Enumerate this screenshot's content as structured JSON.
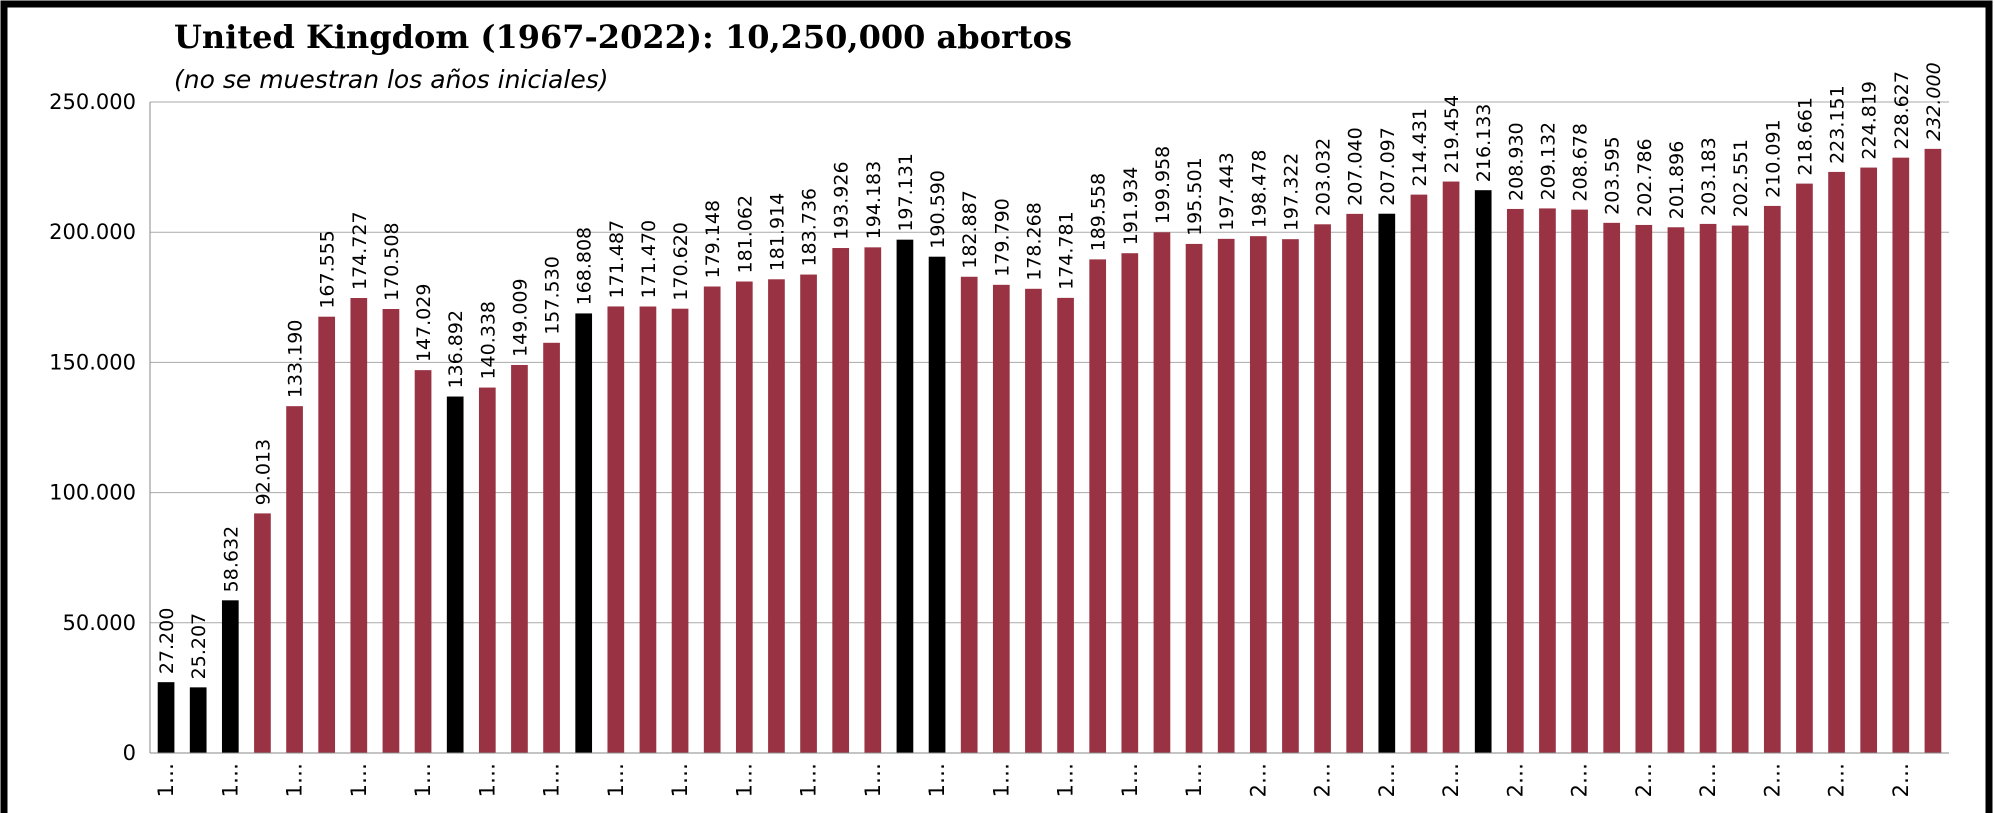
{
  "chart_data": {
    "type": "bar",
    "title": "United Kingdom (1967-2022):  10,250,000 abortos",
    "subtitle": "(no se muestran los años iniciales)",
    "categories": [
      "1…",
      null,
      "1…",
      null,
      "1…",
      null,
      "1…",
      null,
      "1…",
      null,
      "1…",
      null,
      "1…",
      null,
      "1…",
      null,
      "1…",
      null,
      "1…",
      null,
      "1…",
      null,
      "1…",
      null,
      "1…",
      null,
      "1…",
      null,
      "1…",
      null,
      "1…",
      null,
      "1…",
      null,
      "2…",
      null,
      "2…",
      null,
      "2…",
      null,
      "2…",
      null,
      "2…",
      null,
      "2…",
      null,
      "2…",
      null,
      "2…",
      null,
      "2…",
      null,
      "2…",
      null,
      "2…",
      null
    ],
    "values": [
      27200,
      25207,
      58632,
      92013,
      133190,
      167555,
      174727,
      170508,
      147029,
      136892,
      140338,
      149009,
      157530,
      168808,
      171487,
      171470,
      170620,
      179148,
      181062,
      181914,
      183736,
      193926,
      194183,
      197131,
      190590,
      182887,
      179790,
      178268,
      174781,
      189558,
      191934,
      199958,
      195501,
      197443,
      198478,
      197322,
      203032,
      207040,
      207097,
      214431,
      219454,
      216133,
      208930,
      209132,
      208678,
      203595,
      202786,
      201896,
      203183,
      202551,
      210091,
      218661,
      223151,
      224819,
      228627,
      232000
    ],
    "value_labels": [
      "27.200",
      "25.207",
      "58.632",
      "92.013",
      "133.190",
      "167.555",
      "174.727",
      "170.508",
      "147.029",
      "136.892",
      "140.338",
      "149.009",
      "157.530",
      "168.808",
      "171.487",
      "171.470",
      "170.620",
      "179.148",
      "181.062",
      "181.914",
      "183.736",
      "193.926",
      "194.183",
      "197.131",
      "190.590",
      "182.887",
      "179.790",
      "178.268",
      "174.781",
      "189.558",
      "191.934",
      "199.958",
      "195.501",
      "197.443",
      "198.478",
      "197.322",
      "203.032",
      "207.040",
      "207.097",
      "214.431",
      "219.454",
      "216.133",
      "208.930",
      "209.132",
      "208.678",
      "203.595",
      "202.786",
      "201.896",
      "203.183",
      "202.551",
      "210.091",
      "218.661",
      "223.151",
      "224.819",
      "228.627",
      "232.000"
    ],
    "colors": [
      "#000000",
      "#000000",
      "#000000",
      "#993344",
      "#993344",
      "#993344",
      "#993344",
      "#993344",
      "#993344",
      "#000000",
      "#993344",
      "#993344",
      "#993344",
      "#000000",
      "#993344",
      "#993344",
      "#993344",
      "#993344",
      "#993344",
      "#993344",
      "#993344",
      "#993344",
      "#993344",
      "#000000",
      "#000000",
      "#993344",
      "#993344",
      "#993344",
      "#993344",
      "#993344",
      "#993344",
      "#993344",
      "#993344",
      "#993344",
      "#993344",
      "#993344",
      "#993344",
      "#993344",
      "#000000",
      "#993344",
      "#993344",
      "#000000",
      "#993344",
      "#993344",
      "#993344",
      "#993344",
      "#993344",
      "#993344",
      "#993344",
      "#993344",
      "#993344",
      "#993344",
      "#993344",
      "#993344",
      "#993344",
      "#993344"
    ],
    "ylim": [
      0,
      250000
    ],
    "yticks": [
      0,
      {
        "value": 50000,
        "label": "50.000"
      },
      {
        "value": 100000,
        "label": "100.000"
      },
      {
        "value": 150000,
        "label": "150.000"
      },
      {
        "value": 200000,
        "label": "200.000"
      },
      {
        "value": 250000,
        "label": "250.000"
      }
    ],
    "grid": true
  }
}
